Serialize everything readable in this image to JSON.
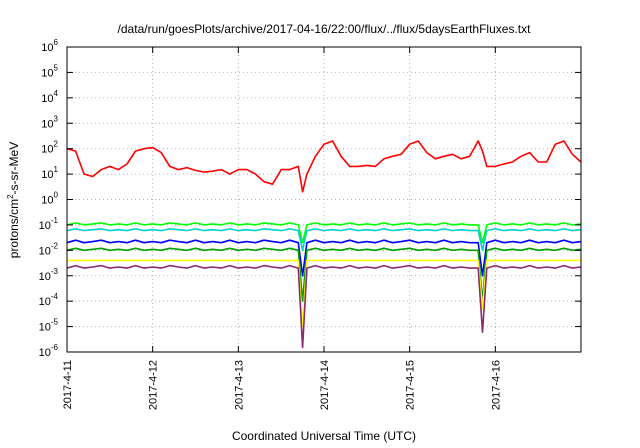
{
  "chart_data": {
    "type": "line",
    "title": "/data/run/goesPlots/archive/2017-04-16/22:00/flux/../flux/5daysEarthFluxes.txt",
    "xlabel": "Coordinated Universal Time (UTC)",
    "ylabel": "protons/cm²-s-sr-MeV",
    "ylabel_parts": [
      "protons/cm",
      "2",
      "-s-sr-MeV"
    ],
    "yscale": "log",
    "ylim": [
      1e-06,
      1000000.0
    ],
    "ytick_exponents": [
      -6,
      -5,
      -4,
      -3,
      -2,
      -1,
      0,
      1,
      2,
      3,
      4,
      5,
      6
    ],
    "ytick_base": "10",
    "xlim": [
      "2017-04-11",
      "2017-04-17"
    ],
    "xtick_labels": [
      "2017-4-11",
      "2017-4-12",
      "2017-4-13",
      "2017-4-14",
      "2017-4-15",
      "2017-4-16"
    ],
    "grid": true,
    "x_days": [
      0,
      0.1,
      0.2,
      0.3,
      0.4,
      0.5,
      0.6,
      0.7,
      0.8,
      0.9,
      1.0,
      1.1,
      1.2,
      1.3,
      1.4,
      1.5,
      1.6,
      1.7,
      1.8,
      1.9,
      2.0,
      2.1,
      2.2,
      2.3,
      2.4,
      2.5,
      2.6,
      2.7,
      2.75,
      2.8,
      2.9,
      3.0,
      3.1,
      3.2,
      3.3,
      3.4,
      3.5,
      3.6,
      3.7,
      3.8,
      3.9,
      4.0,
      4.1,
      4.2,
      4.3,
      4.4,
      4.5,
      4.6,
      4.7,
      4.8,
      4.85,
      4.9,
      5.0,
      5.1,
      5.2,
      5.3,
      5.4,
      5.5,
      5.6,
      5.7,
      5.8,
      5.9,
      6.0
    ],
    "series": [
      {
        "color": "#ff0000",
        "values": [
          100,
          80,
          10,
          8,
          15,
          20,
          15,
          25,
          80,
          100,
          110,
          70,
          20,
          15,
          18,
          14,
          12,
          13,
          15,
          10,
          15,
          15,
          10,
          5,
          4,
          15,
          15,
          20,
          2,
          10,
          50,
          150,
          200,
          50,
          20,
          20,
          22,
          20,
          40,
          50,
          60,
          150,
          200,
          70,
          40,
          50,
          60,
          40,
          50,
          200,
          80,
          20,
          20,
          25,
          30,
          50,
          70,
          30,
          30,
          150,
          200,
          60,
          30
        ]
      },
      {
        "color": "#00ff00",
        "values": [
          0.1,
          0.12,
          0.1,
          0.11,
          0.12,
          0.1,
          0.11,
          0.1,
          0.12,
          0.1,
          0.11,
          0.1,
          0.12,
          0.11,
          0.1,
          0.12,
          0.1,
          0.11,
          0.1,
          0.12,
          0.1,
          0.11,
          0.1,
          0.12,
          0.11,
          0.1,
          0.12,
          0.1,
          0.02,
          0.1,
          0.12,
          0.1,
          0.11,
          0.1,
          0.12,
          0.1,
          0.11,
          0.1,
          0.12,
          0.1,
          0.11,
          0.12,
          0.1,
          0.11,
          0.1,
          0.12,
          0.1,
          0.11,
          0.1,
          0.1,
          0.02,
          0.1,
          0.12,
          0.1,
          0.11,
          0.1,
          0.12,
          0.1,
          0.11,
          0.1,
          0.12,
          0.1,
          0.11
        ]
      },
      {
        "color": "#00cfcf",
        "values": [
          0.06,
          0.07,
          0.06,
          0.065,
          0.07,
          0.06,
          0.065,
          0.06,
          0.07,
          0.06,
          0.065,
          0.06,
          0.07,
          0.065,
          0.06,
          0.07,
          0.06,
          0.065,
          0.06,
          0.07,
          0.06,
          0.065,
          0.06,
          0.07,
          0.065,
          0.06,
          0.07,
          0.06,
          0.01,
          0.06,
          0.07,
          0.06,
          0.065,
          0.06,
          0.07,
          0.06,
          0.065,
          0.06,
          0.07,
          0.06,
          0.065,
          0.07,
          0.06,
          0.065,
          0.06,
          0.07,
          0.06,
          0.065,
          0.06,
          0.06,
          0.01,
          0.06,
          0.07,
          0.06,
          0.065,
          0.06,
          0.07,
          0.06,
          0.065,
          0.06,
          0.07,
          0.06,
          0.065
        ]
      },
      {
        "color": "#0000ff",
        "values": [
          0.02,
          0.025,
          0.02,
          0.022,
          0.025,
          0.02,
          0.022,
          0.02,
          0.025,
          0.02,
          0.022,
          0.02,
          0.025,
          0.022,
          0.02,
          0.025,
          0.02,
          0.022,
          0.02,
          0.025,
          0.02,
          0.022,
          0.02,
          0.025,
          0.022,
          0.02,
          0.025,
          0.02,
          0.001,
          0.02,
          0.025,
          0.02,
          0.022,
          0.02,
          0.025,
          0.02,
          0.022,
          0.02,
          0.025,
          0.02,
          0.022,
          0.025,
          0.02,
          0.022,
          0.02,
          0.025,
          0.02,
          0.022,
          0.02,
          0.02,
          0.001,
          0.02,
          0.025,
          0.02,
          0.022,
          0.02,
          0.025,
          0.02,
          0.022,
          0.02,
          0.025,
          0.02,
          0.022
        ]
      },
      {
        "color": "#00a000",
        "values": [
          0.01,
          0.012,
          0.01,
          0.011,
          0.012,
          0.01,
          0.011,
          0.01,
          0.012,
          0.01,
          0.011,
          0.01,
          0.012,
          0.011,
          0.01,
          0.012,
          0.01,
          0.011,
          0.01,
          0.012,
          0.01,
          0.011,
          0.01,
          0.012,
          0.011,
          0.01,
          0.012,
          0.01,
          0.0001,
          0.01,
          0.012,
          0.01,
          0.011,
          0.01,
          0.012,
          0.01,
          0.011,
          0.01,
          0.012,
          0.01,
          0.011,
          0.012,
          0.01,
          0.011,
          0.01,
          0.012,
          0.01,
          0.011,
          0.01,
          0.01,
          0.0001,
          0.01,
          0.012,
          0.01,
          0.011,
          0.01,
          0.012,
          0.01,
          0.011,
          0.01,
          0.012,
          0.01,
          0.011
        ]
      },
      {
        "color": "#ffff00",
        "values": [
          0.004,
          0.004,
          0.004,
          0.004,
          0.004,
          0.004,
          0.004,
          0.004,
          0.004,
          0.004,
          0.004,
          0.004,
          0.004,
          0.004,
          0.004,
          0.004,
          0.004,
          0.004,
          0.004,
          0.004,
          0.004,
          0.004,
          0.004,
          0.004,
          0.004,
          0.004,
          0.004,
          0.004,
          1e-05,
          0.004,
          0.004,
          0.004,
          0.004,
          0.004,
          0.004,
          0.004,
          0.004,
          0.004,
          0.004,
          0.004,
          0.004,
          0.004,
          0.004,
          0.004,
          0.004,
          0.004,
          0.004,
          0.004,
          0.004,
          0.004,
          5e-05,
          0.004,
          0.004,
          0.004,
          0.004,
          0.004,
          0.004,
          0.004,
          0.004,
          0.004,
          0.004,
          0.004,
          0.004
        ]
      },
      {
        "color": "#8b2a6e",
        "values": [
          0.002,
          0.0025,
          0.002,
          0.0022,
          0.0025,
          0.002,
          0.0022,
          0.002,
          0.0025,
          0.002,
          0.0022,
          0.002,
          0.0025,
          0.0022,
          0.002,
          0.0025,
          0.002,
          0.0022,
          0.002,
          0.0025,
          0.002,
          0.0022,
          0.002,
          0.0025,
          0.0022,
          0.002,
          0.0025,
          0.002,
          1.5e-06,
          0.002,
          0.0025,
          0.002,
          0.0022,
          0.002,
          0.0025,
          0.002,
          0.0022,
          0.002,
          0.0025,
          0.002,
          0.0022,
          0.0025,
          0.002,
          0.0022,
          0.002,
          0.0025,
          0.002,
          0.0022,
          0.002,
          0.002,
          6e-06,
          0.002,
          0.0025,
          0.002,
          0.0022,
          0.002,
          0.0025,
          0.002,
          0.0022,
          0.002,
          0.0025,
          0.002,
          0.0022
        ]
      }
    ]
  }
}
